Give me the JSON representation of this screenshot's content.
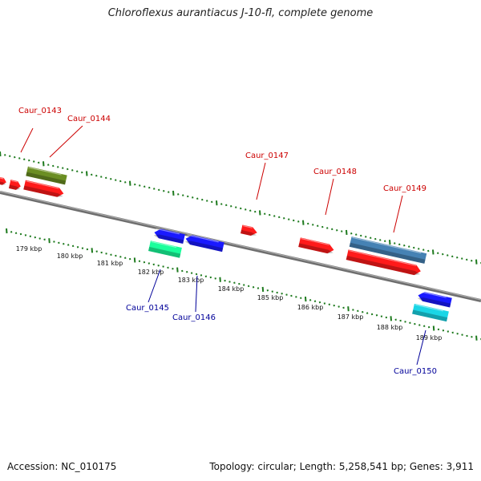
{
  "title": "Chloroflexus aurantiacus J-10-fl, complete genome",
  "footer": {
    "accession": "Accession: NC_010175",
    "stats": "Topology: circular; Length: 5,258,541 bp; Genes: 3,911"
  },
  "colors": {
    "forward_label": "#cc0000",
    "reverse_label": "#000099",
    "tick": "#1e7a1e",
    "backbone": "#808080"
  },
  "scale_labels": [
    "179 kbp",
    "180 kbp",
    "181 kbp",
    "182 kbp",
    "183 kbp",
    "184 kbp",
    "185 kbp",
    "186 kbp",
    "187 kbp",
    "188 kbp",
    "189 kbp"
  ],
  "forward_genes": [
    "Caur_0143",
    "Caur_0144",
    "Caur_0147",
    "Caur_0148",
    "Caur_0149"
  ],
  "reverse_genes": [
    "Caur_0145",
    "Caur_0146",
    "Caur_0150"
  ]
}
